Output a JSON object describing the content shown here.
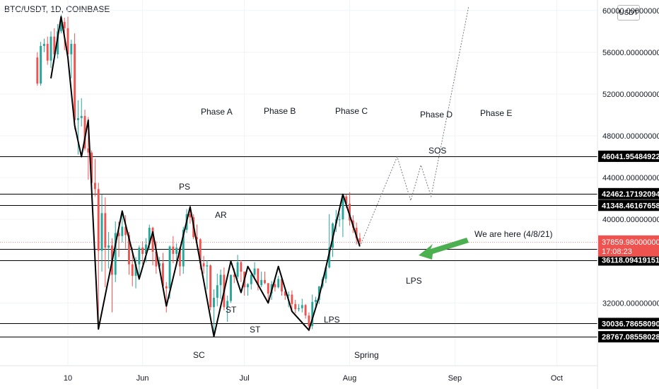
{
  "header": {
    "title": "BTC/USDT, 1D, COINBASE",
    "currency_button": "USDT"
  },
  "colors": {
    "up": "#26a69a",
    "down": "#ef5350",
    "line": "#000000",
    "projection": "#787b86",
    "arrow": "#4caf50",
    "price_tag": "#ef5350",
    "level_tag": "#000000"
  },
  "chart_data": {
    "type": "line",
    "ylim": [
      26000,
      61000
    ],
    "y_ticks": [
      {
        "value": 60000,
        "label": "60000.00000000"
      },
      {
        "value": 56000,
        "label": "56000.00000000"
      },
      {
        "value": 52000,
        "label": "52000.00000000"
      },
      {
        "value": 48000,
        "label": "48000.00000000"
      },
      {
        "value": 44000,
        "label": "44000.00000000"
      },
      {
        "value": 40000,
        "label": "40000.00000000"
      },
      {
        "value": 32000,
        "label": "32000.00000000"
      }
    ],
    "x_ticks": [
      {
        "date": "2021-05-10",
        "label": "10"
      },
      {
        "date": "2021-06-01",
        "label": "Jun"
      },
      {
        "date": "2021-07-01",
        "label": "Jul"
      },
      {
        "date": "2021-08-01",
        "label": "Aug"
      },
      {
        "date": "2021-09-01",
        "label": "Sep"
      },
      {
        "date": "2021-10-01",
        "label": "Oct"
      }
    ],
    "xlim": [
      "2021-04-20",
      "2021-10-13"
    ],
    "horizontal_levels": [
      {
        "value": 46041.95484922,
        "label": "46041.95484922"
      },
      {
        "value": 42462.17192094,
        "label": "42462.17192094"
      },
      {
        "value": 41348.46167658,
        "label": "41348.46167658"
      },
      {
        "value": 37197.20623787,
        "label": "37197.20623787"
      },
      {
        "value": 36118.09419151,
        "label": "36118.09419151"
      },
      {
        "value": 30036.7865809,
        "label": "30036.78658090"
      },
      {
        "value": 28767.08558028,
        "label": "28767.08558028"
      }
    ],
    "current_price": {
      "value": 37859.98,
      "label": "37859.98000000",
      "countdown": "17:08:23"
    },
    "swing_path": [
      {
        "date": "2021-05-05",
        "value": 53500
      },
      {
        "date": "2021-05-08",
        "value": 59400
      },
      {
        "date": "2021-05-10",
        "value": 55500
      },
      {
        "date": "2021-05-12",
        "value": 49000
      },
      {
        "date": "2021-05-14",
        "value": 46000
      },
      {
        "date": "2021-05-16",
        "value": 49500
      },
      {
        "date": "2021-05-19",
        "value": 29500
      },
      {
        "date": "2021-05-26",
        "value": 40800
      },
      {
        "date": "2021-05-31",
        "value": 34300
      },
      {
        "date": "2021-06-04",
        "value": 38800
      },
      {
        "date": "2021-06-08",
        "value": 31700
      },
      {
        "date": "2021-06-15",
        "value": 41200
      },
      {
        "date": "2021-06-22",
        "value": 28800
      },
      {
        "date": "2021-06-27",
        "value": 36000
      },
      {
        "date": "2021-06-30",
        "value": 33000
      },
      {
        "date": "2021-07-02",
        "value": 35500
      },
      {
        "date": "2021-07-08",
        "value": 32000
      },
      {
        "date": "2021-07-11",
        "value": 35500
      },
      {
        "date": "2021-07-15",
        "value": 31200
      },
      {
        "date": "2021-07-20",
        "value": 29400
      },
      {
        "date": "2021-07-23",
        "value": 32600
      },
      {
        "date": "2021-07-30",
        "value": 42400
      },
      {
        "date": "2021-08-04",
        "value": 37400
      }
    ],
    "projection_path": [
      {
        "date": "2021-08-04",
        "value": 37400
      },
      {
        "date": "2021-08-15",
        "value": 46000
      },
      {
        "date": "2021-08-19",
        "value": 41800
      },
      {
        "date": "2021-08-22",
        "value": 45200
      },
      {
        "date": "2021-08-25",
        "value": 42200
      },
      {
        "date": "2021-09-05",
        "value": 60300
      }
    ],
    "candles": [
      {
        "date": "2021-05-01",
        "open": 55500,
        "close": 53000,
        "high": 56000,
        "low": 52800
      },
      {
        "date": "2021-05-02",
        "open": 53000,
        "close": 56600,
        "high": 57000,
        "low": 52800
      },
      {
        "date": "2021-05-03",
        "open": 56600,
        "close": 56800,
        "high": 57300,
        "low": 56000
      },
      {
        "date": "2021-05-04",
        "open": 56800,
        "close": 55200,
        "high": 57500,
        "low": 54800
      },
      {
        "date": "2021-05-05",
        "open": 55200,
        "close": 57500,
        "high": 58000,
        "low": 54500
      },
      {
        "date": "2021-05-06",
        "open": 57500,
        "close": 55800,
        "high": 58300,
        "low": 55300
      },
      {
        "date": "2021-05-07",
        "open": 55800,
        "close": 58000,
        "high": 58700,
        "low": 55400
      },
      {
        "date": "2021-05-08",
        "open": 58000,
        "close": 58900,
        "high": 59600,
        "low": 57800
      },
      {
        "date": "2021-05-09",
        "open": 58900,
        "close": 58300,
        "high": 59300,
        "low": 56200
      },
      {
        "date": "2021-05-10",
        "open": 58300,
        "close": 55800,
        "high": 59400,
        "low": 55000
      },
      {
        "date": "2021-05-11",
        "open": 55800,
        "close": 56800,
        "high": 57200,
        "low": 53500
      },
      {
        "date": "2021-05-12",
        "open": 56800,
        "close": 49500,
        "high": 57800,
        "low": 48600
      },
      {
        "date": "2021-05-13",
        "open": 49500,
        "close": 49700,
        "high": 51400,
        "low": 46200
      },
      {
        "date": "2021-05-14",
        "open": 49700,
        "close": 49900,
        "high": 51600,
        "low": 48900
      },
      {
        "date": "2021-05-15",
        "open": 49900,
        "close": 46800,
        "high": 50500,
        "low": 46600
      },
      {
        "date": "2021-05-16",
        "open": 46800,
        "close": 46400,
        "high": 49800,
        "low": 43800
      },
      {
        "date": "2021-05-17",
        "open": 46400,
        "close": 43500,
        "high": 46600,
        "low": 42100
      },
      {
        "date": "2021-05-18",
        "open": 43500,
        "close": 42900,
        "high": 45800,
        "low": 42200
      },
      {
        "date": "2021-05-19",
        "open": 42900,
        "close": 37000,
        "high": 43500,
        "low": 30000
      },
      {
        "date": "2021-05-20",
        "open": 37000,
        "close": 40600,
        "high": 42400,
        "low": 35000
      },
      {
        "date": "2021-05-21",
        "open": 40600,
        "close": 37300,
        "high": 42100,
        "low": 33500
      },
      {
        "date": "2021-05-22",
        "open": 37300,
        "close": 37500,
        "high": 38800,
        "low": 35300
      },
      {
        "date": "2021-05-23",
        "open": 37500,
        "close": 34700,
        "high": 38200,
        "low": 31100
      },
      {
        "date": "2021-05-24",
        "open": 34700,
        "close": 38700,
        "high": 39800,
        "low": 34000
      },
      {
        "date": "2021-05-25",
        "open": 38700,
        "close": 38400,
        "high": 39800,
        "low": 36400
      },
      {
        "date": "2021-05-26",
        "open": 38400,
        "close": 39300,
        "high": 40800,
        "low": 37800
      },
      {
        "date": "2021-05-27",
        "open": 39300,
        "close": 38500,
        "high": 40400,
        "low": 37200
      },
      {
        "date": "2021-05-28",
        "open": 38500,
        "close": 35700,
        "high": 38800,
        "low": 34700
      },
      {
        "date": "2021-05-29",
        "open": 35700,
        "close": 34600,
        "high": 37300,
        "low": 33600
      },
      {
        "date": "2021-05-30",
        "open": 34600,
        "close": 35700,
        "high": 36400,
        "low": 33400
      },
      {
        "date": "2021-05-31",
        "open": 35700,
        "close": 37300,
        "high": 37500,
        "low": 34200
      },
      {
        "date": "2021-06-01",
        "open": 37300,
        "close": 36700,
        "high": 37900,
        "low": 35700
      },
      {
        "date": "2021-06-02",
        "open": 36700,
        "close": 37600,
        "high": 38200,
        "low": 35900
      },
      {
        "date": "2021-06-03",
        "open": 37600,
        "close": 39200,
        "high": 39500,
        "low": 37200
      },
      {
        "date": "2021-06-04",
        "open": 39200,
        "close": 36900,
        "high": 39300,
        "low": 35600
      },
      {
        "date": "2021-06-05",
        "open": 36900,
        "close": 35500,
        "high": 37900,
        "low": 34800
      },
      {
        "date": "2021-06-06",
        "open": 35500,
        "close": 35800,
        "high": 36400,
        "low": 35300
      },
      {
        "date": "2021-06-07",
        "open": 35800,
        "close": 33600,
        "high": 36800,
        "low": 33400
      },
      {
        "date": "2021-06-08",
        "open": 33600,
        "close": 33400,
        "high": 34000,
        "low": 31100
      },
      {
        "date": "2021-06-09",
        "open": 33400,
        "close": 37400,
        "high": 37500,
        "low": 32400
      },
      {
        "date": "2021-06-10",
        "open": 37400,
        "close": 36700,
        "high": 38400,
        "low": 35800
      },
      {
        "date": "2021-06-11",
        "open": 36700,
        "close": 37300,
        "high": 37700,
        "low": 35900
      },
      {
        "date": "2021-06-12",
        "open": 37300,
        "close": 35500,
        "high": 37400,
        "low": 34600
      },
      {
        "date": "2021-06-13",
        "open": 35500,
        "close": 39000,
        "high": 39300,
        "low": 34800
      },
      {
        "date": "2021-06-14",
        "open": 39000,
        "close": 40500,
        "high": 41000,
        "low": 38700
      },
      {
        "date": "2021-06-15",
        "open": 40500,
        "close": 40200,
        "high": 41300,
        "low": 39600
      },
      {
        "date": "2021-06-16",
        "open": 40200,
        "close": 38300,
        "high": 40500,
        "low": 38100
      },
      {
        "date": "2021-06-17",
        "open": 38300,
        "close": 38100,
        "high": 39500,
        "low": 37400
      },
      {
        "date": "2021-06-18",
        "open": 38100,
        "close": 35800,
        "high": 38200,
        "low": 35200
      },
      {
        "date": "2021-06-19",
        "open": 35800,
        "close": 35500,
        "high": 36500,
        "low": 34800
      },
      {
        "date": "2021-06-20",
        "open": 35500,
        "close": 35600,
        "high": 36100,
        "low": 33300
      },
      {
        "date": "2021-06-21",
        "open": 35600,
        "close": 31600,
        "high": 35700,
        "low": 31300
      },
      {
        "date": "2021-06-22",
        "open": 31600,
        "close": 32500,
        "high": 33300,
        "low": 28800
      },
      {
        "date": "2021-06-23",
        "open": 32500,
        "close": 33700,
        "high": 34800,
        "low": 31700
      },
      {
        "date": "2021-06-24",
        "open": 33700,
        "close": 34700,
        "high": 35200,
        "low": 32400
      },
      {
        "date": "2021-06-25",
        "open": 34700,
        "close": 31600,
        "high": 35400,
        "low": 31300
      },
      {
        "date": "2021-06-26",
        "open": 31600,
        "close": 32200,
        "high": 32700,
        "low": 30200
      },
      {
        "date": "2021-06-27",
        "open": 32200,
        "close": 34700,
        "high": 34700,
        "low": 32000
      },
      {
        "date": "2021-06-28",
        "open": 34700,
        "close": 34500,
        "high": 35300,
        "low": 33900
      },
      {
        "date": "2021-06-29",
        "open": 34500,
        "close": 35900,
        "high": 36600,
        "low": 34300
      },
      {
        "date": "2021-06-30",
        "open": 35900,
        "close": 35000,
        "high": 36100,
        "low": 34000
      },
      {
        "date": "2021-07-01",
        "open": 35000,
        "close": 33500,
        "high": 35000,
        "low": 32700
      },
      {
        "date": "2021-07-02",
        "open": 33500,
        "close": 33800,
        "high": 33900,
        "low": 32700
      },
      {
        "date": "2021-07-03",
        "open": 33800,
        "close": 34700,
        "high": 34900,
        "low": 33300
      },
      {
        "date": "2021-07-04",
        "open": 34700,
        "close": 35300,
        "high": 35900,
        "low": 34400
      },
      {
        "date": "2021-07-05",
        "open": 35300,
        "close": 33700,
        "high": 35300,
        "low": 33200
      },
      {
        "date": "2021-07-06",
        "open": 33700,
        "close": 34200,
        "high": 35000,
        "low": 33500
      },
      {
        "date": "2021-07-07",
        "open": 34200,
        "close": 33900,
        "high": 35000,
        "low": 33800
      },
      {
        "date": "2021-07-08",
        "open": 33900,
        "close": 32900,
        "high": 33900,
        "low": 32100
      },
      {
        "date": "2021-07-09",
        "open": 32900,
        "close": 33800,
        "high": 34100,
        "low": 32300
      },
      {
        "date": "2021-07-10",
        "open": 33800,
        "close": 33500,
        "high": 34200,
        "low": 33100
      },
      {
        "date": "2021-07-11",
        "open": 33500,
        "close": 34300,
        "high": 34600,
        "low": 33400
      },
      {
        "date": "2021-07-12",
        "open": 34300,
        "close": 33100,
        "high": 34600,
        "low": 32700
      },
      {
        "date": "2021-07-13",
        "open": 33100,
        "close": 32700,
        "high": 33300,
        "low": 32300
      },
      {
        "date": "2021-07-14",
        "open": 32700,
        "close": 32800,
        "high": 33100,
        "low": 31600
      },
      {
        "date": "2021-07-15",
        "open": 32800,
        "close": 31900,
        "high": 33200,
        "low": 31200
      },
      {
        "date": "2021-07-16",
        "open": 31900,
        "close": 31400,
        "high": 32300,
        "low": 31000
      },
      {
        "date": "2021-07-17",
        "open": 31400,
        "close": 31500,
        "high": 31900,
        "low": 31200
      },
      {
        "date": "2021-07-18",
        "open": 31500,
        "close": 31800,
        "high": 32400,
        "low": 31100
      },
      {
        "date": "2021-07-19",
        "open": 31800,
        "close": 30800,
        "high": 31900,
        "low": 30500
      },
      {
        "date": "2021-07-20",
        "open": 30800,
        "close": 29800,
        "high": 31100,
        "low": 29300
      },
      {
        "date": "2021-07-21",
        "open": 29800,
        "close": 32100,
        "high": 32800,
        "low": 29500
      },
      {
        "date": "2021-07-22",
        "open": 32100,
        "close": 32300,
        "high": 32600,
        "low": 31700
      },
      {
        "date": "2021-07-23",
        "open": 32300,
        "close": 33600,
        "high": 33600,
        "low": 31900
      },
      {
        "date": "2021-07-24",
        "open": 33600,
        "close": 34300,
        "high": 34500,
        "low": 33400
      },
      {
        "date": "2021-07-25",
        "open": 34300,
        "close": 35400,
        "high": 35400,
        "low": 33900
      },
      {
        "date": "2021-07-26",
        "open": 35400,
        "close": 37300,
        "high": 40500,
        "low": 35300
      },
      {
        "date": "2021-07-27",
        "open": 37300,
        "close": 39600,
        "high": 39700,
        "low": 36400
      },
      {
        "date": "2021-07-28",
        "open": 39600,
        "close": 40000,
        "high": 40900,
        "low": 38800
      },
      {
        "date": "2021-07-29",
        "open": 40000,
        "close": 40000,
        "high": 40600,
        "low": 39300
      },
      {
        "date": "2021-07-30",
        "open": 40000,
        "close": 42200,
        "high": 42300,
        "low": 38300
      },
      {
        "date": "2021-07-31",
        "open": 42200,
        "close": 41500,
        "high": 42400,
        "low": 41100
      },
      {
        "date": "2021-08-01",
        "open": 41500,
        "close": 39900,
        "high": 42600,
        "low": 39400
      },
      {
        "date": "2021-08-02",
        "open": 39900,
        "close": 39200,
        "high": 40400,
        "low": 38700
      },
      {
        "date": "2021-08-03",
        "open": 39200,
        "close": 38200,
        "high": 39700,
        "low": 37600
      },
      {
        "date": "2021-08-04",
        "open": 38200,
        "close": 37860,
        "high": 38700,
        "low": 37500
      }
    ]
  },
  "annotations": {
    "phase_a": "Phase A",
    "phase_b": "Phase B",
    "phase_c": "Phase C",
    "phase_d": "Phase D",
    "phase_e": "Phase E",
    "ps": "PS",
    "sc": "SC",
    "ar": "AR",
    "st1": "ST",
    "st2": "ST",
    "lps1": "LPS",
    "spring": "Spring",
    "lps2": "LPS",
    "sos": "SOS",
    "note": "We are here (4/8/21)"
  }
}
